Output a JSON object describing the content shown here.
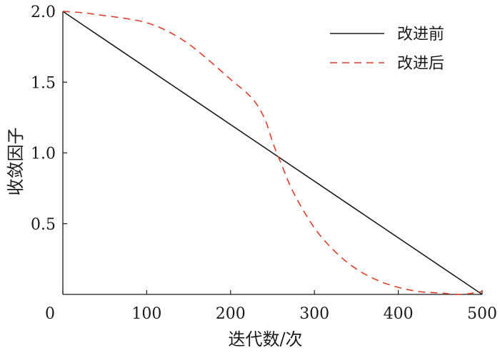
{
  "chart_data": {
    "type": "line",
    "xlabel": "迭代数/次",
    "ylabel": "收敛因子",
    "xlim": [
      0,
      500
    ],
    "ylim": [
      0,
      2.0
    ],
    "x_ticks": [
      0,
      100,
      200,
      300,
      400,
      500
    ],
    "y_ticks": [
      0.5,
      1.0,
      1.5,
      2.0
    ],
    "x_tick_labels": [
      "0",
      "100",
      "200",
      "300",
      "400",
      "500"
    ],
    "y_tick_labels": [
      "0.5",
      "1.0",
      "1.5",
      "2.0"
    ],
    "grid": false,
    "legend_position": "top-right",
    "series": [
      {
        "name": "改进前",
        "color": "#1a1a1a",
        "style": "solid",
        "x": [
          0,
          500
        ],
        "y": [
          2.0,
          0.0
        ]
      },
      {
        "name": "改进后",
        "color": "#d9402b",
        "style": "dashed",
        "x": [
          0,
          25,
          50,
          75,
          100,
          125,
          150,
          175,
          200,
          225,
          240,
          250,
          255,
          260,
          275,
          300,
          325,
          350,
          375,
          400,
          425,
          450,
          475,
          500
        ],
        "y": [
          2.0,
          1.99,
          1.97,
          1.95,
          1.92,
          1.86,
          1.77,
          1.65,
          1.52,
          1.39,
          1.25,
          1.08,
          1.0,
          0.93,
          0.72,
          0.47,
          0.3,
          0.18,
          0.1,
          0.05,
          0.02,
          0.01,
          0.0,
          0.02
        ]
      }
    ]
  }
}
